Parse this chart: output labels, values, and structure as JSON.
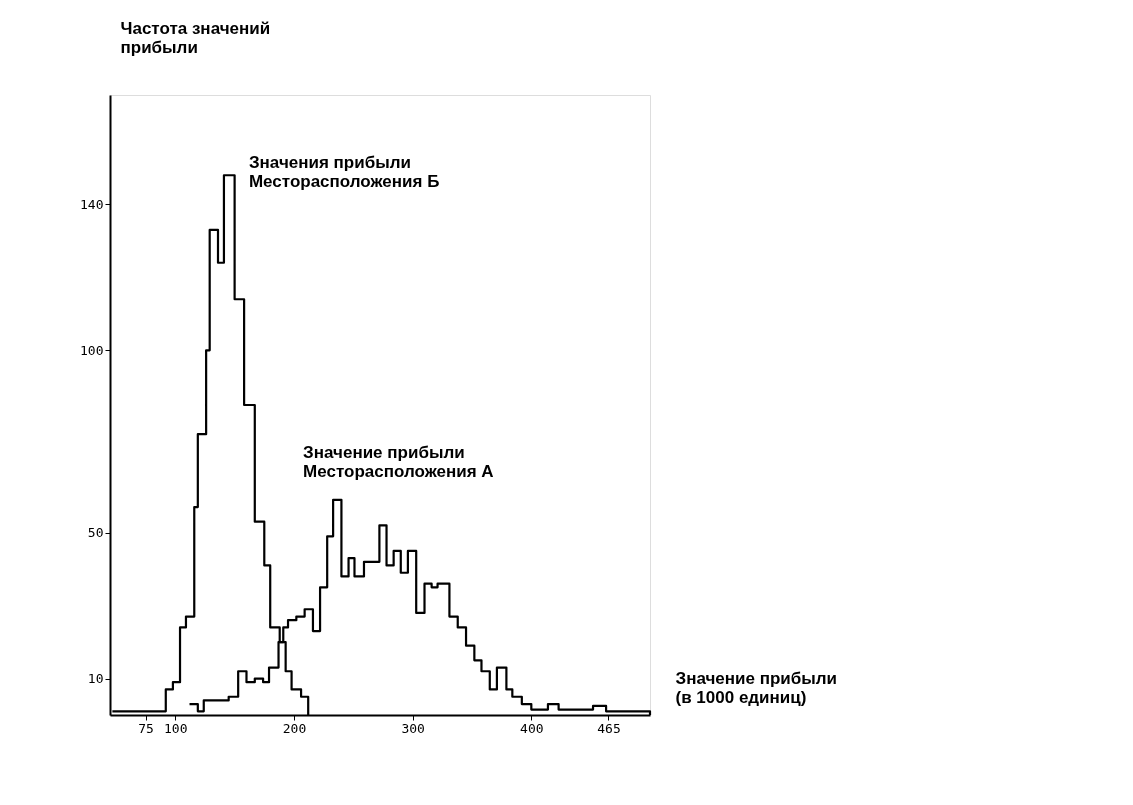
{
  "chart_data": {
    "type": "step",
    "ylabel": "Частота значений\nприбыли",
    "xlabel": "Значение прибыли\n(в 1000 единиц)",
    "xlim": [
      45,
      500
    ],
    "xticks": [
      75,
      100,
      200,
      300,
      400,
      465
    ],
    "ylim": [
      0,
      170
    ],
    "yticks": [
      10,
      50,
      100,
      140
    ],
    "grid": false,
    "marker": "none",
    "line_style": "solid",
    "series": [
      {
        "name": "Значения прибыли\nМесторасположения Б",
        "color": "#000000",
        "x": [
          47,
          92,
          98,
          104,
          109,
          116,
          119,
          126,
          129,
          136,
          141,
          150,
          158,
          167,
          175,
          180,
          188,
          193,
          198,
          206,
          212
        ],
        "values": [
          1,
          7,
          9,
          24,
          27,
          57,
          77,
          100,
          133,
          124,
          148,
          114,
          85,
          53,
          41,
          24,
          20,
          12,
          7,
          5,
          0
        ]
      },
      {
        "name": "Значение прибыли\nМесторасположения А",
        "color": "#000000",
        "x": [
          112,
          119,
          124,
          145,
          153,
          160,
          167,
          174,
          179,
          187,
          191,
          195,
          202,
          209,
          216,
          222,
          228,
          233,
          240,
          246,
          251,
          259,
          272,
          278,
          284,
          290,
          296,
          303,
          310,
          316,
          321,
          331,
          338,
          345,
          352,
          358,
          365,
          371,
          379,
          384,
          392,
          400,
          414,
          423,
          452,
          463,
          500
        ],
        "values": [
          3,
          1,
          4,
          5,
          12,
          9,
          10,
          9,
          13,
          20,
          24,
          26,
          27,
          29,
          23,
          35,
          49,
          59,
          38,
          43,
          38,
          42,
          52,
          41,
          45,
          39,
          45,
          28,
          36,
          35,
          36,
          27,
          24,
          19,
          15,
          12,
          7,
          13,
          7,
          5,
          3,
          1.5,
          3,
          1.5,
          2.5,
          1,
          0
        ]
      }
    ]
  }
}
